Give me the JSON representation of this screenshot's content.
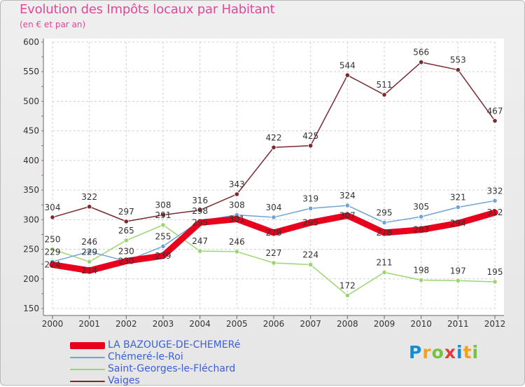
{
  "title": "Evolution des Impôts locaux par Habitant",
  "subtitle": "(en € et par an)",
  "chart_data": {
    "type": "line",
    "x": [
      "2000",
      "2001",
      "2002",
      "2003",
      "2004",
      "2005",
      "2006",
      "2007",
      "2008",
      "2009",
      "2010",
      "2011",
      "2012"
    ],
    "ylim": [
      150,
      600
    ],
    "yticks": [
      150,
      200,
      250,
      300,
      350,
      400,
      450,
      500,
      550,
      600
    ],
    "grid": true,
    "series": [
      {
        "name": "LA BAZOUGE-DE-CHEMERé",
        "color": "#e8001c",
        "values": [
          224,
          214,
          230,
          239,
          295,
          301,
          278,
          295,
          307,
          278,
          283,
          294,
          312
        ],
        "labels": [
          "224",
          "214",
          "230",
          "239",
          "295",
          "301",
          "278",
          "295",
          "307",
          "278",
          "283",
          "294",
          "312"
        ]
      },
      {
        "name": "Chémeré-le-Roi",
        "color": "#6fa3d6",
        "values": [
          229,
          246,
          230,
          255,
          298,
          308,
          304,
          319,
          324,
          295,
          305,
          321,
          332
        ],
        "labels": [
          "229",
          "246",
          "230",
          "255",
          "298",
          "308",
          "304",
          "319",
          "324",
          "295",
          "305",
          "321",
          "332"
        ]
      },
      {
        "name": "Saint-Georges-le-Fléchard",
        "color": "#9ad66e",
        "values": [
          250,
          229,
          265,
          291,
          247,
          246,
          227,
          224,
          172,
          211,
          198,
          197,
          195
        ],
        "labels": [
          "250",
          "229",
          "265",
          "291",
          "247",
          "246",
          "227",
          "224",
          "172",
          "211",
          "198",
          "197",
          "195"
        ]
      },
      {
        "name": "Vaiges",
        "color": "#7a2a2e",
        "values": [
          304,
          322,
          297,
          308,
          316,
          343,
          422,
          425,
          544,
          511,
          566,
          553,
          467
        ],
        "labels": [
          "304",
          "322",
          "297",
          "308",
          "316",
          "343",
          "422",
          "425",
          "544",
          "511",
          "566",
          "553",
          "467"
        ]
      }
    ]
  },
  "logo": {
    "text": [
      "P",
      "r",
      "o",
      "x",
      "i",
      "t",
      "i"
    ],
    "colors": [
      "#1a8bd1",
      "#f3a21b",
      "#78c043",
      "#e33b3b",
      "#1a8bd1",
      "#f3a21b",
      "#78c043"
    ]
  }
}
